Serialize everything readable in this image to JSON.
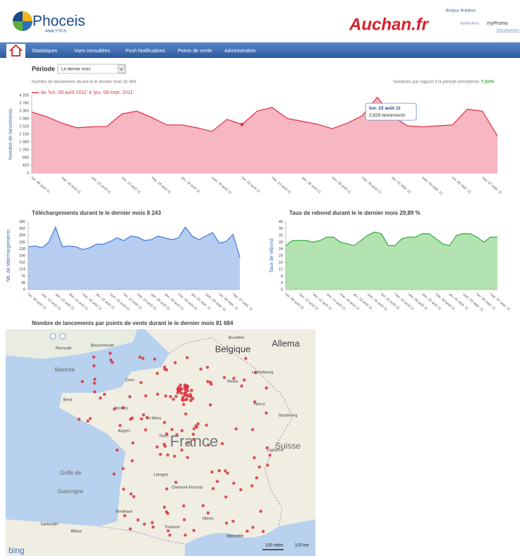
{
  "header": {
    "logo": "Phoceis",
    "logo_sub": "ANALYTICS",
    "client": "Auchan.fr",
    "greeting": "Bonjour M Admin",
    "app_label": "Application",
    "app_name": "myPromo",
    "logout": "Déconnexion"
  },
  "nav": [
    "Statistiques",
    "Vues consultées",
    "Push Notifications",
    "Points de vente",
    "Administration"
  ],
  "period": {
    "label": "Période :",
    "value": "Le dernier mois"
  },
  "chart_data": [
    {
      "type": "area",
      "title": "Nombre de lancements durant le le dernier mois 81 684",
      "variation_label": "Variations par rapport à la période précédente",
      "variation_value": "7,83%",
      "legend": "du 'lun. 08 août 2011' à 'jeu. 08 sept. 2011'",
      "ylabel": "Nombre de lancements",
      "color": "#e0394c",
      "fill": "#f4aab7",
      "tooltip": {
        "title": "lun. 22 août 11",
        "text": "2,629 lancements"
      },
      "ylim": [
        0,
        4200
      ],
      "yticks": [
        0,
        420,
        840,
        {
          "value": 1260,
          "label": "1 260"
        },
        {
          "value": 1680,
          "label": "1 680"
        },
        {
          "value": 2100,
          "label": "2 100"
        },
        {
          "value": 2520,
          "label": "2 520"
        },
        {
          "value": 2940,
          "label": "2 940"
        },
        {
          "value": 3360,
          "label": "3 360"
        },
        {
          "value": 3780,
          "label": "3 780"
        },
        {
          "value": 4200,
          "label": "4 200"
        }
      ],
      "categories": [
        "lun. 08 août 11",
        null,
        "mer. 10 août 11",
        null,
        "ven. 12 août 11",
        null,
        "dim. 14 août 11",
        null,
        "mar. 16 août 11",
        null,
        "jeu. 18 août 11",
        null,
        "sam. 20 août 11",
        null,
        "lun. 22 août 11",
        null,
        "mer. 24 août 11",
        null,
        "ven. 26 août 11",
        null,
        "dim. 28 août 11",
        null,
        "mar. 30 août 11",
        null,
        "jeu. 01 sept. 11",
        null,
        "sam. 03 sept. 11",
        null,
        "lun. 05 sept. 11",
        null,
        "mer. 07 sept. 11",
        null
      ],
      "values": [
        3300,
        3050,
        2700,
        2450,
        2500,
        2520,
        3200,
        3350,
        3000,
        2600,
        2600,
        2450,
        2250,
        2900,
        2629,
        3350,
        3550,
        2950,
        2800,
        2650,
        2400,
        2700,
        3100,
        4100,
        3100,
        2550,
        2500,
        2550,
        2600,
        3450,
        3350,
        2000
      ]
    },
    {
      "type": "area",
      "title": "Téléchargements durant le le dernier mois 8 243",
      "ylabel": "Nb. de téléchargements",
      "color": "#4a7fd6",
      "fill": "#a9c4ef",
      "ylim": [
        0,
        380
      ],
      "yticks": [
        0,
        38,
        76,
        114,
        152,
        190,
        228,
        266,
        304,
        342,
        380
      ],
      "categories": [
        "lun. 08 août 11",
        null,
        "mer. 10 août 11",
        null,
        "ven. 12 août 11",
        null,
        "dim. 14 août 11",
        null,
        "mar. 16 août 11",
        null,
        "jeu. 18 août 11",
        null,
        "sam. 20 août 11",
        null,
        "lun. 22 août 11",
        null,
        "mer. 24 août 11",
        null,
        "ven. 26 août 11",
        null,
        "dim. 28 août 11",
        null,
        "mar. 30 août 11",
        null,
        "jeu. 01 sept. 11",
        null,
        "sam. 03 sept. 11",
        null,
        "lun. 05 sept. 11",
        null,
        "mer. 07 sept. 11",
        null
      ],
      "values": [
        240,
        245,
        235,
        265,
        350,
        240,
        245,
        240,
        225,
        235,
        255,
        255,
        270,
        290,
        275,
        300,
        295,
        275,
        280,
        300,
        290,
        280,
        290,
        350,
        300,
        280,
        300,
        320,
        260,
        270,
        310,
        180
      ]
    },
    {
      "type": "area",
      "title": "Taux de rebond durant le le dernier mois 29,89 %",
      "ylabel": "Taux de rebond",
      "color": "#3cae44",
      "fill": "#a6dea2",
      "ylim": [
        0,
        40
      ],
      "yticks": [
        0,
        4,
        8,
        12,
        16,
        20,
        24,
        28,
        32,
        36,
        40
      ],
      "categories": [
        "lun. 08 août 11",
        null,
        "mer. 10 août 11",
        null,
        "ven. 12 août 11",
        null,
        "dim. 14 août 11",
        null,
        "mar. 16 août 11",
        null,
        "jeu. 18 août 11",
        null,
        "sam. 20 août 11",
        null,
        "lun. 22 août 11",
        null,
        "mer. 24 août 11",
        null,
        "ven. 26 août 11",
        null,
        "dim. 28 août 11",
        null,
        "mar. 30 août 11",
        null,
        "jeu. 01 sept. 11",
        null,
        "sam. 03 sept. 11",
        null,
        "lun. 05 sept. 11",
        null,
        "mer. 07 sept. 11",
        null
      ],
      "values": [
        26,
        29,
        29,
        29,
        28,
        29,
        31,
        31,
        28,
        27,
        26,
        29,
        32,
        34,
        33,
        26,
        26,
        30,
        31,
        31,
        33,
        33,
        30,
        27,
        26,
        32,
        33,
        33,
        31,
        28,
        31,
        31
      ]
    }
  ],
  "map": {
    "title": "Nombre de lancements par points de vente durant le le dernier mois 81 684",
    "labels": [
      "Belgique",
      "Allema",
      "France",
      "Suisse",
      "Manche",
      "Golfe de",
      "Gascogne",
      "Brest",
      "Rennes",
      "Caen",
      "Angers",
      "Le Mans",
      "Tours",
      "Reims",
      "Nancy",
      "Strasbourg",
      "Limoges",
      "Clermont-Ferrand",
      "Bordeaux",
      "Toulouse",
      "Nîmes",
      "Marseille",
      "Lausanne",
      "Luxembourg",
      "Bruxelles",
      "Santander",
      "Bilbao",
      "Plymouth",
      "Bournemouth"
    ],
    "scale_miles": "100 miles",
    "scale_km": "100 km",
    "provider": "bing"
  }
}
